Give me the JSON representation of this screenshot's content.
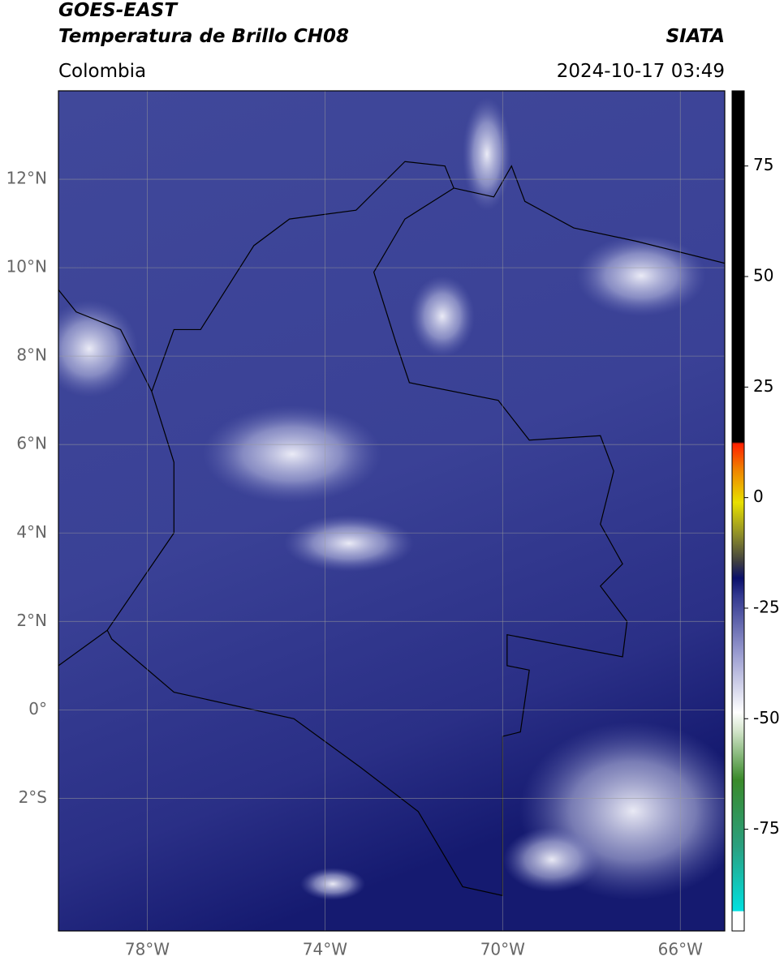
{
  "header": {
    "title_line1": "GOES-EAST",
    "title_line2": "Temperatura de Brillo CH08",
    "source": "SIATA",
    "region": "Colombia",
    "datetime": "2024-10-17 03:49"
  },
  "map": {
    "xlim": [
      -80,
      -65
    ],
    "ylim": [
      -5,
      14
    ],
    "xticks": [
      {
        "value": -78,
        "label": "78°W"
      },
      {
        "value": -74,
        "label": "74°W"
      },
      {
        "value": -70,
        "label": "70°W"
      },
      {
        "value": -66,
        "label": "66°W"
      }
    ],
    "yticks": [
      {
        "value": 12,
        "label": "12°N"
      },
      {
        "value": 10,
        "label": "10°N"
      },
      {
        "value": 8,
        "label": "8°N"
      },
      {
        "value": 6,
        "label": "6°N"
      },
      {
        "value": 4,
        "label": "4°N"
      },
      {
        "value": 2,
        "label": "2°N"
      },
      {
        "value": 0,
        "label": "0°"
      },
      {
        "value": -2,
        "label": "2°S"
      }
    ]
  },
  "colorbar": {
    "lim": [
      -98,
      92
    ],
    "ticks": [
      75,
      50,
      25,
      0,
      -25,
      -50,
      -75
    ]
  }
}
